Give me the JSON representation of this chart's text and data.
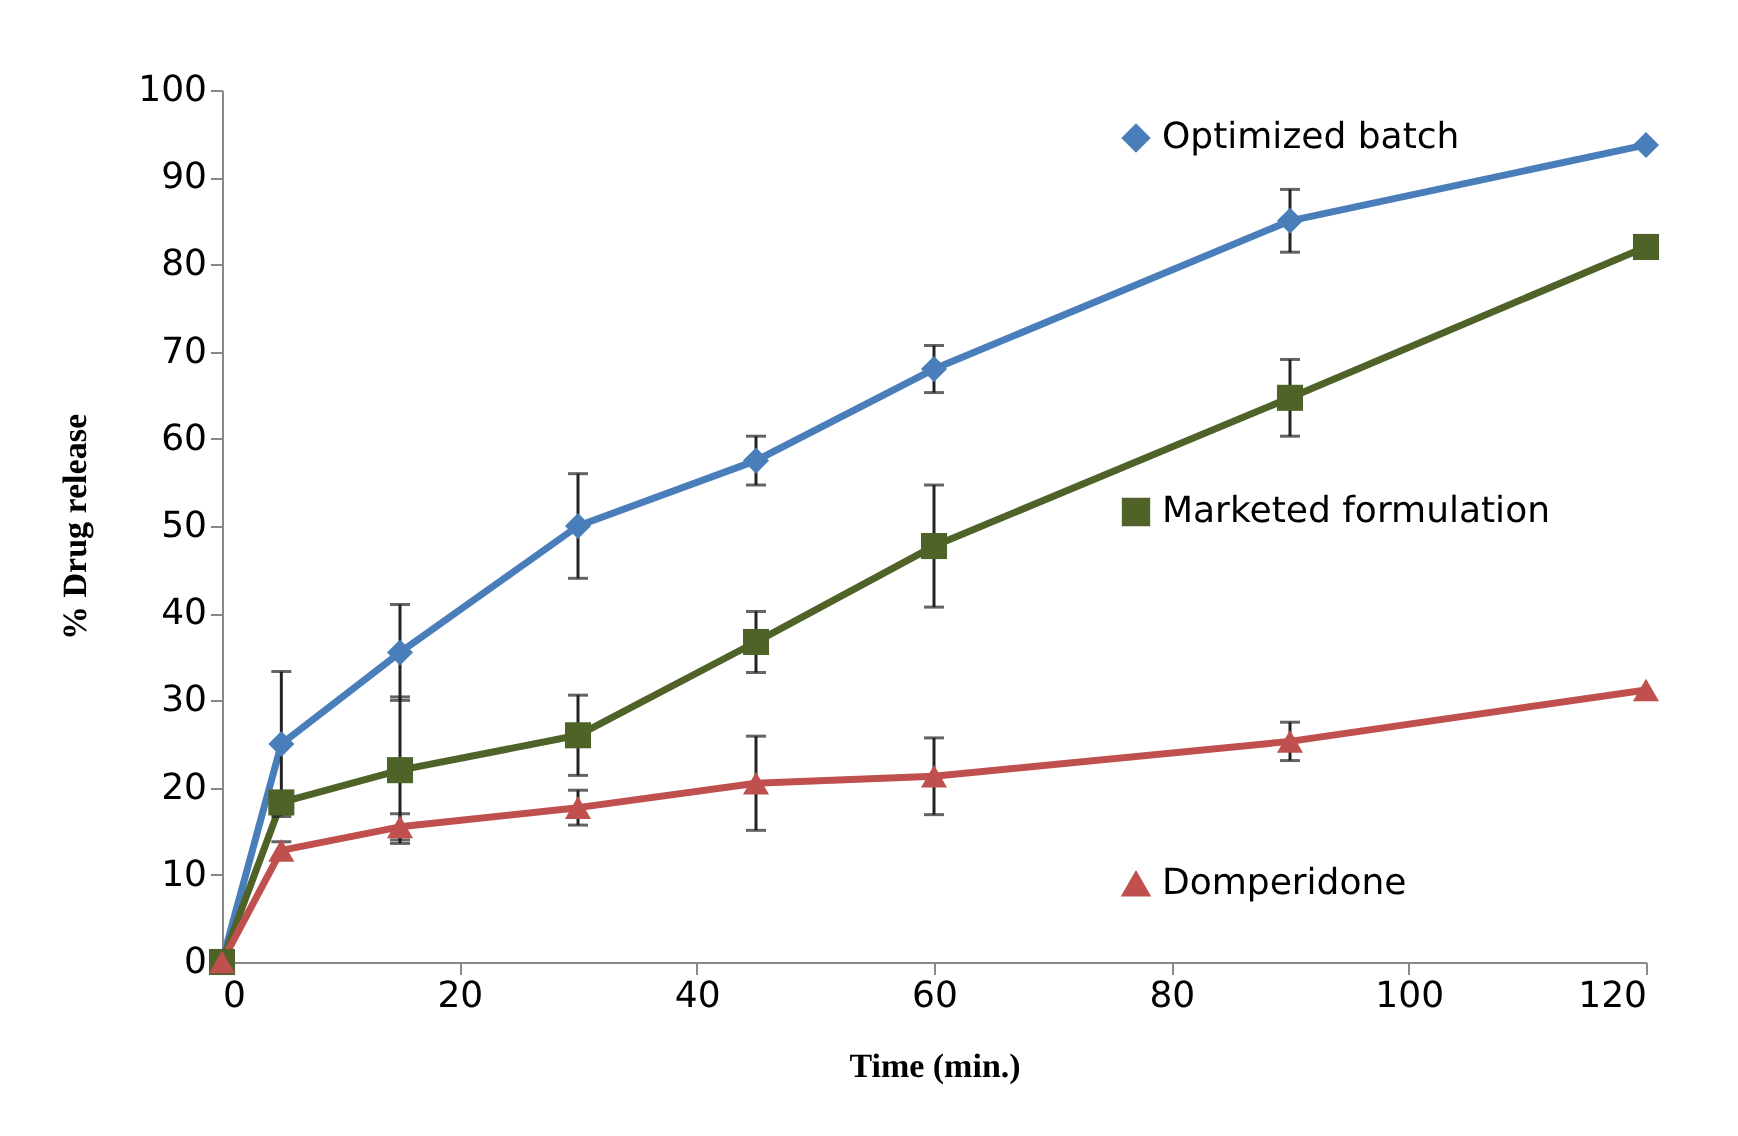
{
  "chart_data": {
    "type": "line",
    "xlabel": "Time (min.)",
    "ylabel": "% Drug release",
    "x": [
      0,
      5,
      15,
      30,
      45,
      60,
      90,
      120
    ],
    "series": [
      {
        "name": "Optimized batch",
        "color": "#4a7ebb",
        "marker": "diamond",
        "values": [
          0,
          25,
          35.5,
          50,
          57.5,
          68,
          85,
          93.7
        ],
        "errors": [
          null,
          8.3,
          5.5,
          6,
          2.8,
          2.7,
          3.6,
          null
        ]
      },
      {
        "name": "Marketed formulation",
        "color": "#4f6228",
        "marker": "square",
        "values": [
          0,
          18.3,
          22,
          26,
          36.7,
          47.7,
          64.7,
          82
        ],
        "errors": [
          null,
          null,
          8.4,
          4.6,
          3.5,
          7,
          4.4,
          null
        ]
      },
      {
        "name": "Domperidone",
        "color": "#c0504d",
        "marker": "triangle",
        "values": [
          0,
          12.8,
          15.5,
          17.7,
          20.5,
          21.3,
          25.3,
          31.2
        ],
        "errors": [
          null,
          1,
          1.5,
          2,
          5.4,
          4.4,
          2.2,
          null
        ]
      }
    ],
    "xlim": [
      0,
      120
    ],
    "xticks": [
      0,
      20,
      40,
      60,
      80,
      100,
      120
    ],
    "ylim": [
      0,
      100
    ],
    "yticks": [
      0,
      10,
      20,
      30,
      40,
      50,
      60,
      70,
      80,
      90,
      100
    ],
    "legend": "right",
    "grid": false
  }
}
